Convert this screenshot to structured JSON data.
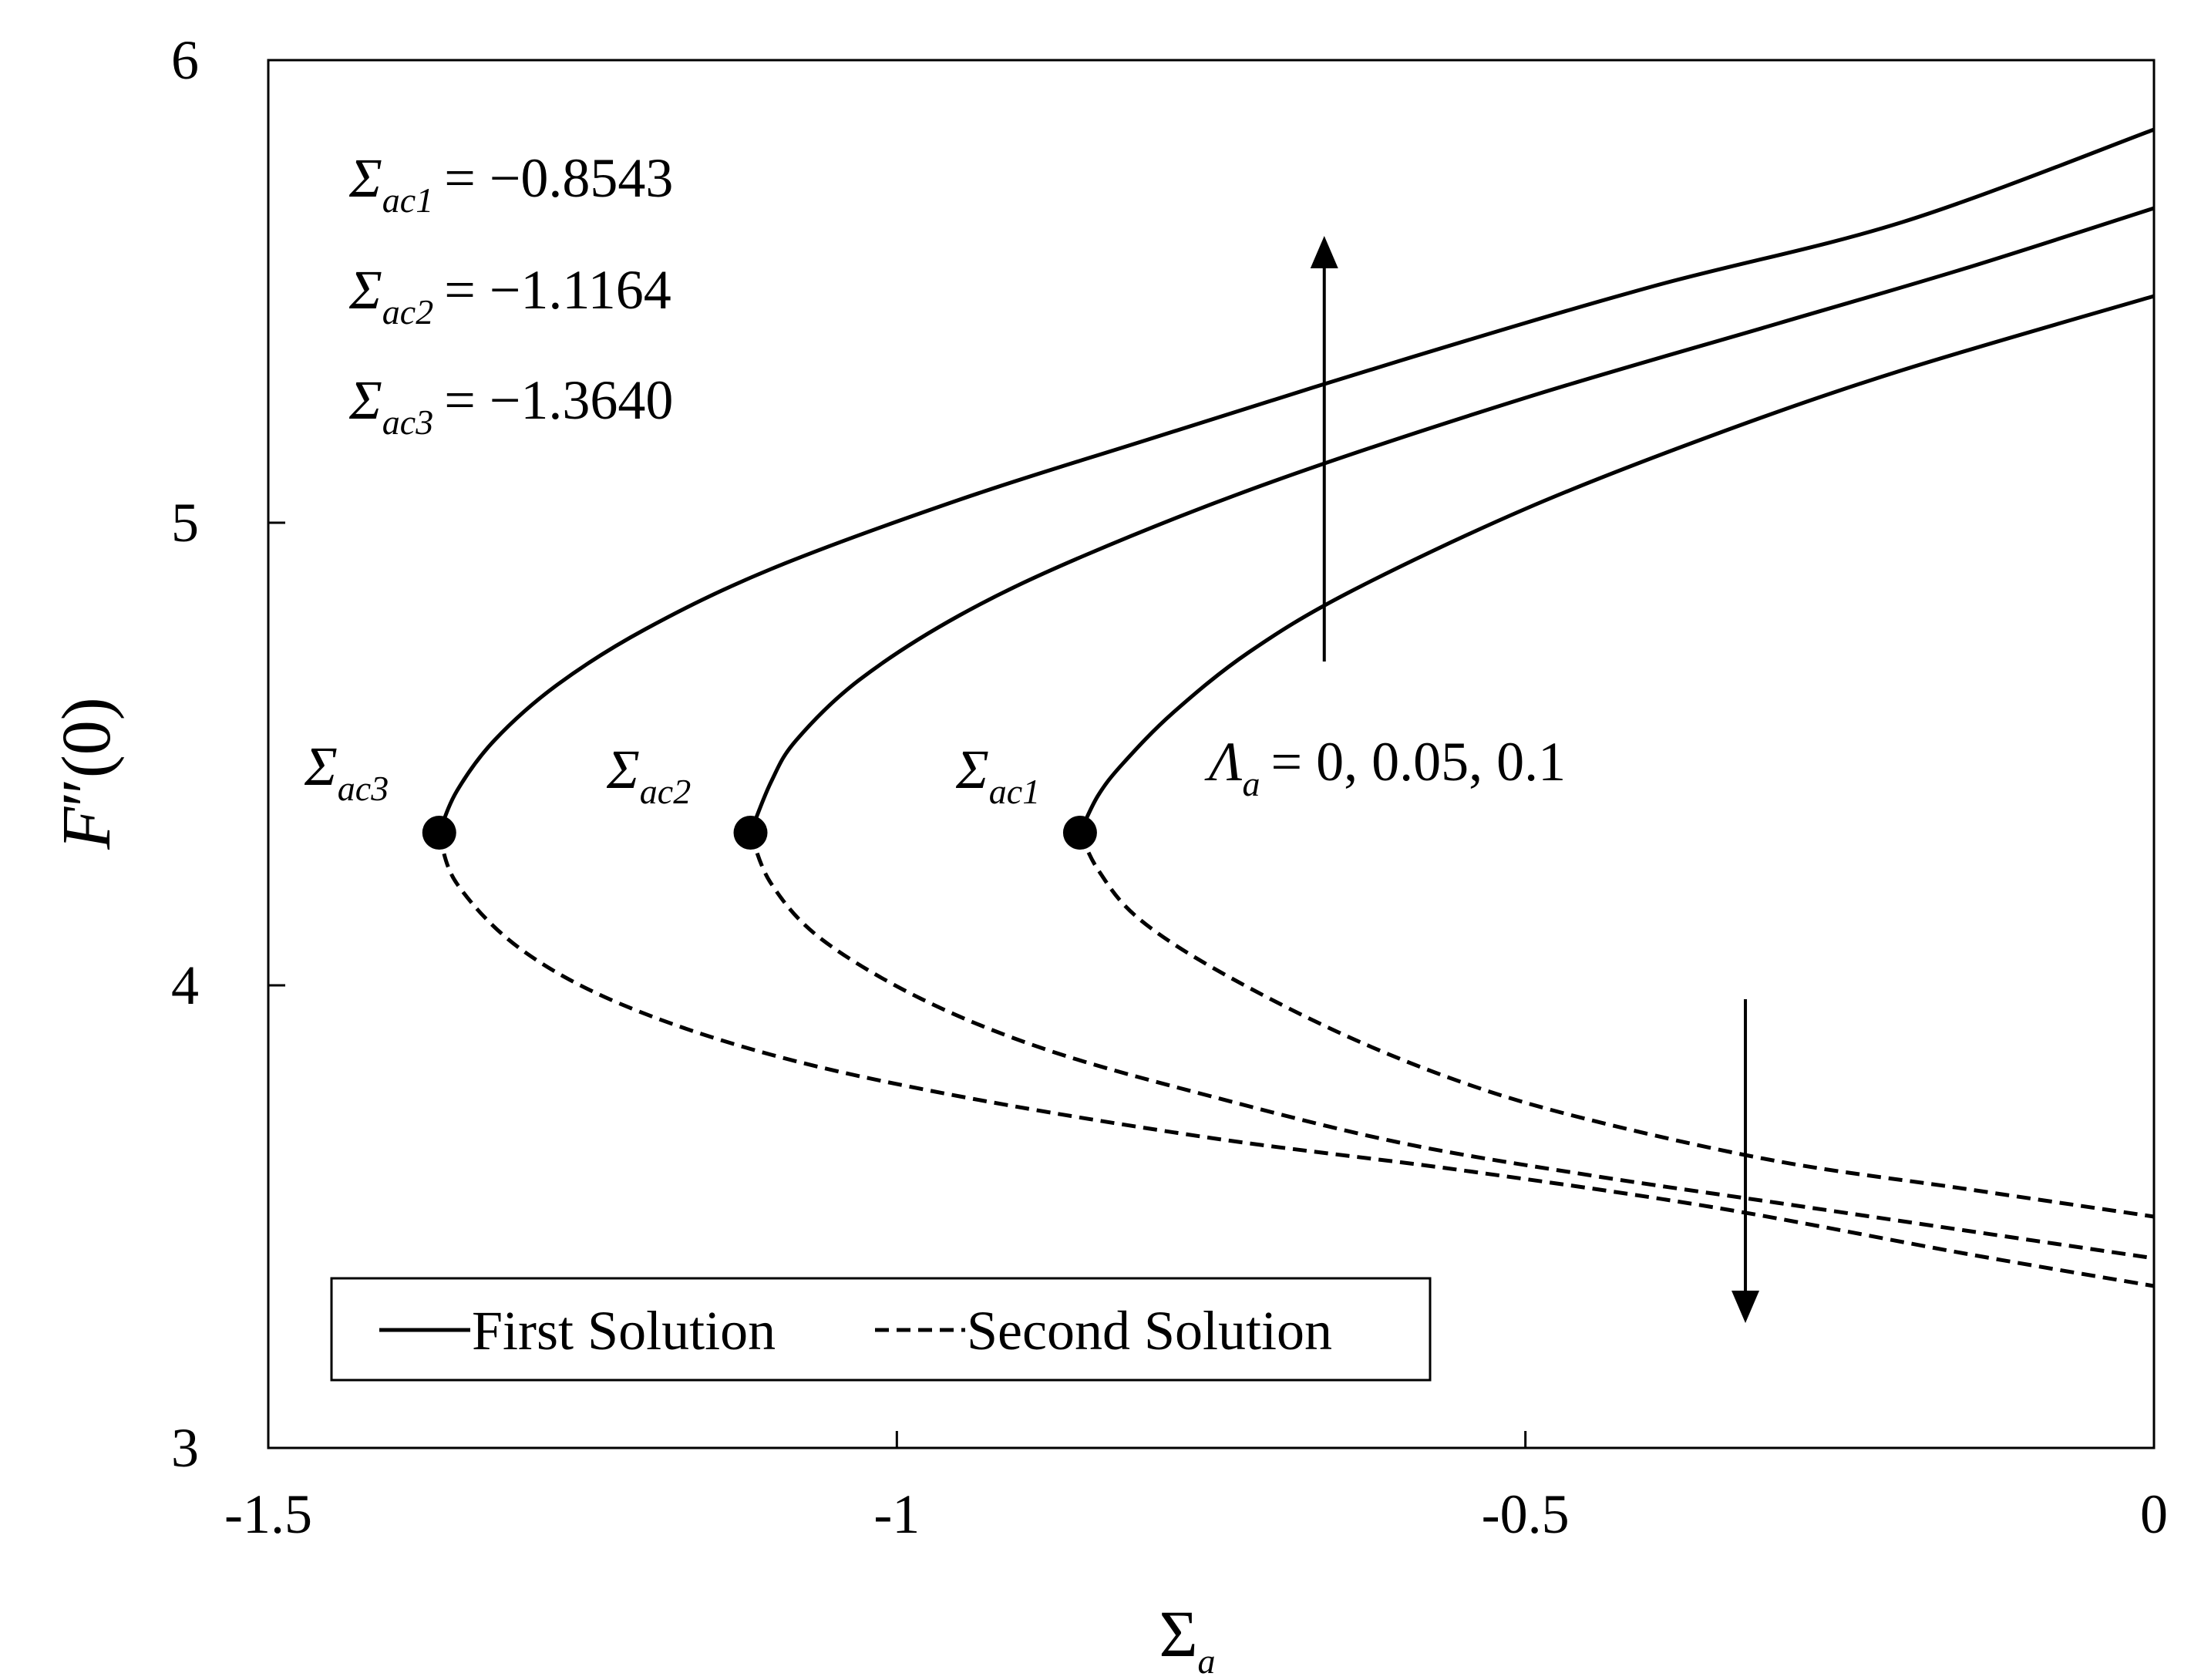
{
  "chart_data": {
    "type": "line",
    "title": "",
    "xlabel": "Σ",
    "xlabel_subscript": "a",
    "ylabel_main": "F",
    "ylabel_prime": "″",
    "ylabel_arg": "(0)",
    "xlim": [
      -1.5,
      0
    ],
    "ylim": [
      3,
      6
    ],
    "x_ticks": [
      -1.5,
      -1,
      -0.5,
      0
    ],
    "x_tick_labels": [
      "-1.5",
      "-1",
      "-0.5",
      "0"
    ],
    "y_ticks": [
      3,
      4,
      5,
      6
    ],
    "y_tick_labels": [
      "3",
      "4",
      "5",
      "6"
    ],
    "grid": false,
    "legend": {
      "position": "bottom-left",
      "entries": [
        {
          "label": "First Solution",
          "style": "solid"
        },
        {
          "label": "Second Solution",
          "style": "dashed"
        }
      ]
    },
    "series": [
      {
        "name": "First Solution",
        "style": "solid",
        "points": [
          [
            -0.8543,
            4.33
          ],
          [
            -0.84,
            4.41
          ],
          [
            -0.82,
            4.48
          ],
          [
            -0.78,
            4.59
          ],
          [
            -0.72,
            4.72
          ],
          [
            -0.64,
            4.85
          ],
          [
            -0.5,
            5.03
          ],
          [
            -0.35,
            5.19
          ],
          [
            -0.2,
            5.33
          ],
          [
            0,
            5.49
          ]
        ]
      },
      {
        "name": "First Solution",
        "style": "solid",
        "points": [
          [
            -1.1164,
            4.33
          ],
          [
            -1.1,
            4.44
          ],
          [
            -1.08,
            4.53
          ],
          [
            -1.03,
            4.66
          ],
          [
            -0.95,
            4.8
          ],
          [
            -0.85,
            4.93
          ],
          [
            -0.7,
            5.09
          ],
          [
            -0.5,
            5.27
          ],
          [
            -0.3,
            5.43
          ],
          [
            -0.15,
            5.55
          ],
          [
            0,
            5.68
          ]
        ]
      },
      {
        "name": "First Solution",
        "style": "solid",
        "points": [
          [
            -1.364,
            4.33
          ],
          [
            -1.35,
            4.42
          ],
          [
            -1.32,
            4.53
          ],
          [
            -1.27,
            4.65
          ],
          [
            -1.2,
            4.77
          ],
          [
            -1.1,
            4.9
          ],
          [
            -0.95,
            5.05
          ],
          [
            -0.8,
            5.18
          ],
          [
            -0.6,
            5.35
          ],
          [
            -0.4,
            5.51
          ],
          [
            -0.2,
            5.65
          ],
          [
            0,
            5.85
          ]
        ]
      },
      {
        "name": "Second Solution",
        "style": "dashed",
        "points": [
          [
            -0.8543,
            4.33
          ],
          [
            -0.84,
            4.25
          ],
          [
            -0.81,
            4.15
          ],
          [
            -0.75,
            4.04
          ],
          [
            -0.65,
            3.9
          ],
          [
            -0.55,
            3.79
          ],
          [
            -0.45,
            3.71
          ],
          [
            -0.3,
            3.62
          ],
          [
            -0.15,
            3.56
          ],
          [
            0,
            3.5
          ]
        ]
      },
      {
        "name": "Second Solution",
        "style": "dashed",
        "points": [
          [
            -1.1164,
            4.33
          ],
          [
            -1.1,
            4.22
          ],
          [
            -1.06,
            4.1
          ],
          [
            -0.98,
            3.97
          ],
          [
            -0.88,
            3.86
          ],
          [
            -0.75,
            3.76
          ],
          [
            -0.6,
            3.66
          ],
          [
            -0.45,
            3.59
          ],
          [
            -0.3,
            3.53
          ],
          [
            -0.15,
            3.47
          ],
          [
            0,
            3.41
          ]
        ]
      },
      {
        "name": "Second Solution",
        "style": "dashed",
        "points": [
          [
            -1.364,
            4.33
          ],
          [
            -1.35,
            4.22
          ],
          [
            -1.3,
            4.08
          ],
          [
            -1.22,
            3.96
          ],
          [
            -1.1,
            3.85
          ],
          [
            -0.95,
            3.76
          ],
          [
            -0.75,
            3.67
          ],
          [
            -0.55,
            3.6
          ],
          [
            -0.35,
            3.52
          ],
          [
            -0.15,
            3.42
          ],
          [
            0,
            3.35
          ]
        ]
      }
    ],
    "critical_points": [
      {
        "label": "Σ",
        "sub": "ac1",
        "x": -0.8543,
        "y": 4.33
      },
      {
        "label": "Σ",
        "sub": "ac2",
        "x": -1.1164,
        "y": 4.33
      },
      {
        "label": "Σ",
        "sub": "ac3",
        "x": -1.364,
        "y": 4.33
      }
    ],
    "critical_values": [
      {
        "label": "Σ",
        "sub": "ac1",
        "rhs": "= −0.8543"
      },
      {
        "label": "Σ",
        "sub": "ac2",
        "rhs": "= −1.1164"
      },
      {
        "label": "Σ",
        "sub": "ac3",
        "rhs": "= −1.3640"
      }
    ],
    "parameter_annotation": {
      "symbol": "Λ",
      "sub": "a",
      "rhs": "= 0, 0.05, 0.1"
    },
    "arrows": [
      {
        "x": -0.66,
        "y_from": 4.7,
        "y_to": 5.62
      },
      {
        "x": -0.325,
        "y_from": 3.97,
        "y_to": 3.27
      }
    ]
  }
}
